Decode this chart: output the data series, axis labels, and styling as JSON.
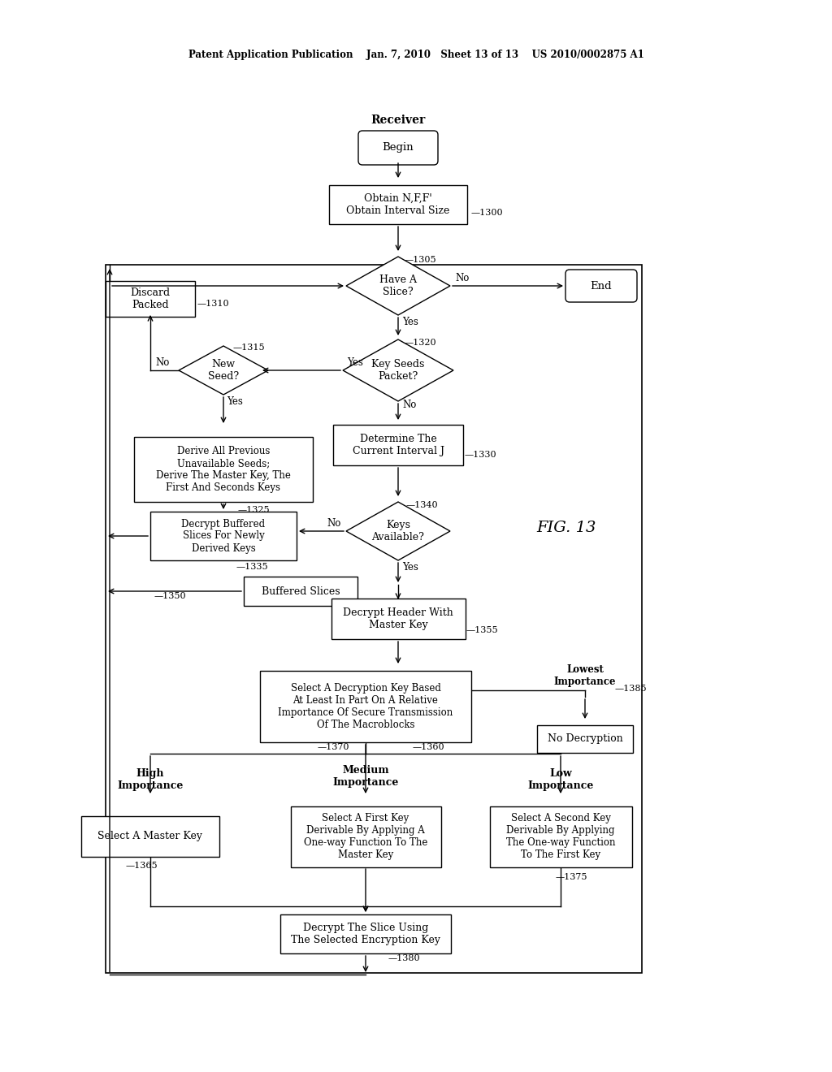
{
  "bg_color": "#ffffff",
  "header": "Patent Application Publication    Jan. 7, 2010   Sheet 13 of 13    US 2010/0002875 A1",
  "fig_label": "FIG. 13",
  "receiver_label": "Receiver"
}
